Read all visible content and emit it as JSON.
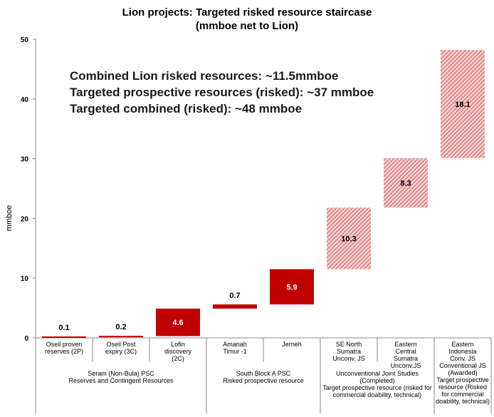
{
  "title_line1": "Lion projects: Targeted risked resource staircase",
  "title_line2": "(mmboe net to Lion)",
  "annotations": [
    "Combined Lion risked resources:  ~11.5mmboe",
    "Targeted prospective resources (risked): ~37 mmboe",
    "Targeted combined (risked): ~48 mmboe"
  ],
  "colors": {
    "solid": "#c00000",
    "hatch": "#c00000",
    "axis": "#888888"
  },
  "chart_data": {
    "type": "bar",
    "subtype": "waterfall",
    "ylabel": "mmboe",
    "ylim": [
      0,
      50
    ],
    "yticks": [
      0,
      10,
      20,
      30,
      40,
      50
    ],
    "categories": [
      [
        "Oseil proven",
        "reserves (2P)"
      ],
      [
        "Oseil Post",
        "expiry (3C)"
      ],
      [
        "Lofin",
        "discovery",
        "(2C)"
      ],
      [
        "Amanah",
        "Timur -1"
      ],
      [
        "Jerneh"
      ],
      [
        "SE North",
        "Sumatra",
        "Unconv. JS"
      ],
      [
        "Eastern",
        "Central",
        "Sumatra",
        "Unconv.JS"
      ],
      [
        "Eastern",
        "Indonesia",
        "Conv. JS"
      ]
    ],
    "bars": [
      {
        "base": 0,
        "value": 0.1,
        "label": "0.1",
        "style": "solid"
      },
      {
        "base": 0.1,
        "value": 0.2,
        "label": "0.2",
        "style": "solid"
      },
      {
        "base": 0.3,
        "value": 4.6,
        "label": "4.6",
        "style": "solid"
      },
      {
        "base": 4.9,
        "value": 0.7,
        "label": "0.7",
        "style": "solid"
      },
      {
        "base": 5.6,
        "value": 5.9,
        "label": "5.9",
        "style": "solid"
      },
      {
        "base": 11.5,
        "value": 10.3,
        "label": "10.3",
        "style": "hatched"
      },
      {
        "base": 21.8,
        "value": 8.3,
        "label": "8.3",
        "style": "hatched"
      },
      {
        "base": 30.1,
        "value": 18.1,
        "label": "18.1",
        "style": "hatched"
      }
    ],
    "groups": [
      {
        "from": 0,
        "to": 2,
        "lines": [
          "Seram (Non-Bula) PSC",
          "Reserves and Contingent Resources"
        ]
      },
      {
        "from": 3,
        "to": 4,
        "lines": [
          "South Block A PSC",
          "Risked prospective resource"
        ]
      },
      {
        "from": 5,
        "to": 6,
        "lines": [
          "Unconventional Joint Studies",
          "(Completed)",
          "Target prospective resource (risked for",
          "commercial doability, technical)"
        ]
      },
      {
        "from": 7,
        "to": 7,
        "lines": [
          "Conventional JS",
          "(Awarded)",
          "Target prospective",
          "resource (Risked",
          "for commercial",
          "doability, technical)"
        ]
      }
    ]
  }
}
